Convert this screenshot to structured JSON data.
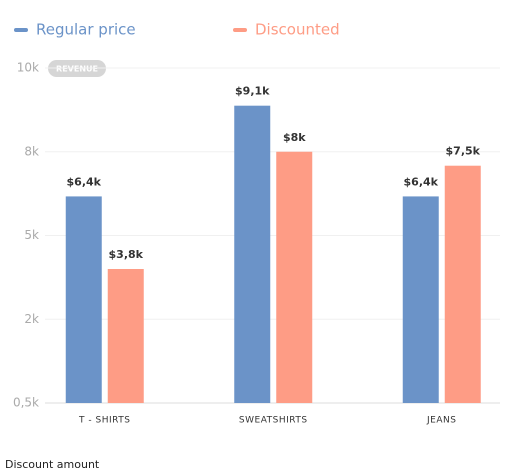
{
  "chart_data": {
    "type": "bar",
    "series": [
      {
        "name": "Regular price",
        "color": "#6b93c8",
        "values": [
          6.4,
          9.1,
          6.4
        ],
        "value_labels": [
          "$6,4k",
          "$9,1k",
          "$6,4k"
        ]
      },
      {
        "name": "Discounted",
        "color": "#fe9c85",
        "values": [
          3.8,
          8,
          7.5
        ],
        "value_labels": [
          "$3,8k",
          "$8k",
          "$7,5k"
        ]
      }
    ],
    "categories": [
      "T - SHIRTS",
      "SWEATSHIRTS",
      "JEANS"
    ],
    "ylim": [
      0.5,
      10
    ],
    "yticks": [
      {
        "value": 0.5,
        "label": "0,5k"
      },
      {
        "value": 2,
        "label": "2k"
      },
      {
        "value": 5,
        "label": "5k"
      },
      {
        "value": 8,
        "label": "8k"
      },
      {
        "value": 10,
        "label": "10k"
      }
    ],
    "y_badge": "REVENUE",
    "x_label": "Discount amount",
    "grid": true,
    "legend": "top"
  }
}
